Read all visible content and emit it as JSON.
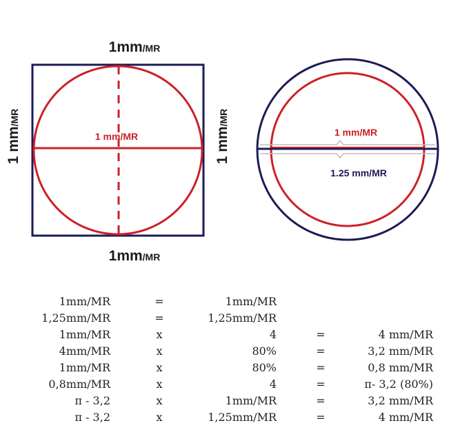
{
  "diagram": {
    "square": {
      "top_label": "1mm",
      "top_label_unit": "/MR",
      "bottom_label": "1mm",
      "bottom_label_unit": "/MR",
      "left_label": "1 mm",
      "left_label_unit": "/MR",
      "right_label": "1 mm",
      "right_label_unit": "/MR",
      "center_label": "1 mm/MR"
    },
    "circle": {
      "inner_label": "1 mm/MR",
      "outer_label": "1.25 mm/MR"
    },
    "colors": {
      "red": "#cc2127",
      "navy": "#1b1b55",
      "gray": "#bdbdbd"
    }
  },
  "calculations": [
    {
      "a": "1mm/MR",
      "op": "=",
      "b": "1mm/MR",
      "eq": "",
      "result": ""
    },
    {
      "a": "1,25mm/MR",
      "op": "=",
      "b": "1,25mm/MR",
      "eq": "",
      "result": ""
    },
    {
      "a": "1mm/MR",
      "op": "x",
      "b": "4",
      "eq": "=",
      "result": "4 mm/MR"
    },
    {
      "a": "4mm/MR",
      "op": "x",
      "b": "80%",
      "eq": "=",
      "result": "3,2 mm/MR"
    },
    {
      "a": "1mm/MR",
      "op": "x",
      "b": "80%",
      "eq": "=",
      "result": "0,8 mm/MR"
    },
    {
      "a": "0,8mm/MR",
      "op": "x",
      "b": "4",
      "eq": "=",
      "result": "π- 3,2 (80%)"
    },
    {
      "a": "π - 3,2",
      "op": "x",
      "b": "1mm/MR",
      "eq": "=",
      "result": "3,2 mm/MR"
    },
    {
      "a": "π - 3,2",
      "op": "x",
      "b": "1,25mm/MR",
      "eq": "=",
      "result": "4 mm/MR"
    }
  ]
}
